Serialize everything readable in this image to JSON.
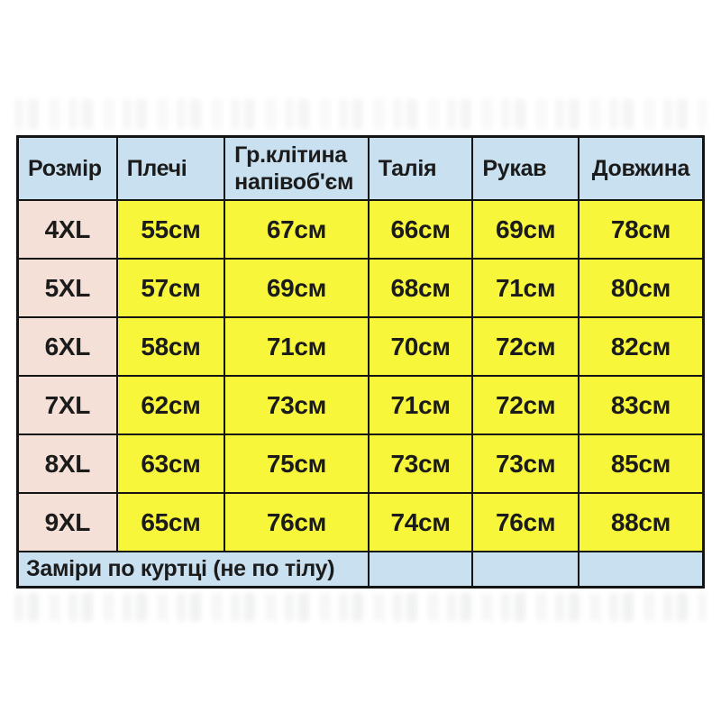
{
  "colors": {
    "header_bg": "#c9e0f0",
    "size_col_bg": "#f4e0d6",
    "value_bg": "#f7f63a",
    "footer_bg": "#c9e0f0",
    "border_color": "#141414",
    "text_color": "#1b1b1b",
    "page_bg": "#ffffff"
  },
  "chart_data": {
    "type": "table",
    "title": "",
    "units": "см",
    "columns": [
      "Розмір",
      "Плечі",
      "Гр.клітина напівоб'єм",
      "Талія",
      "Рукав",
      "Довжина"
    ],
    "rows": [
      [
        "4XL",
        "55см",
        "67см",
        "66см",
        "69см",
        "78см"
      ],
      [
        "5XL",
        "57см",
        "69см",
        "68см",
        "71см",
        "80см"
      ],
      [
        "6XL",
        "58см",
        "71см",
        "70см",
        "72см",
        "82см"
      ],
      [
        "7XL",
        "62см",
        "73см",
        "71см",
        "72см",
        "83см"
      ],
      [
        "8XL",
        "63см",
        "75см",
        "73см",
        "73см",
        "85см"
      ],
      [
        "9XL",
        "65см",
        "76см",
        "74см",
        "76см",
        "88см"
      ]
    ],
    "footer": "Заміри по куртці (не по тілу)"
  }
}
